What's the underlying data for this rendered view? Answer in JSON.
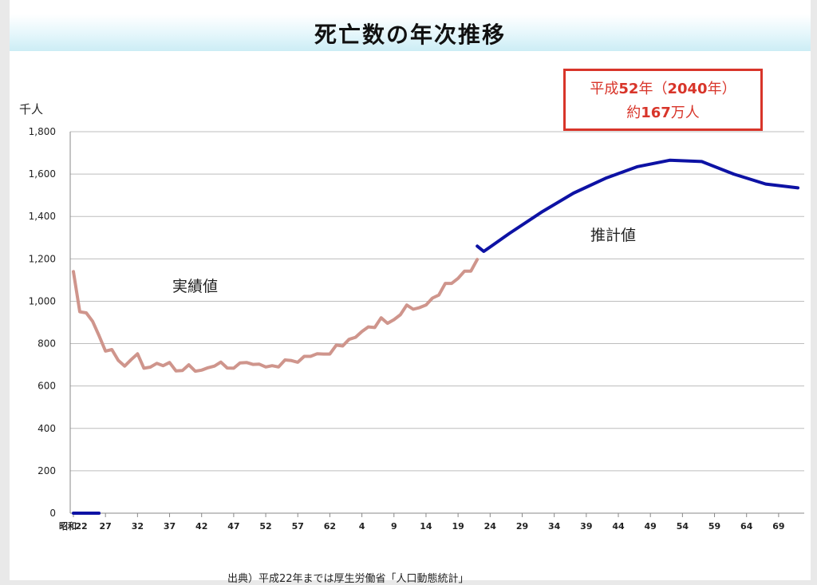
{
  "title": "死亡数の年次推移",
  "unit_label": "千人",
  "callout": {
    "line1_pre": "平成",
    "line1_year": "52",
    "line1_mid": "年（",
    "line1_ad": "2040",
    "line1_post": "年）",
    "line2_pre": "約",
    "line2_value": "167",
    "line2_post": "万人"
  },
  "source_text": "出典）平成22年までは厚生労働省「人口動態統計」",
  "colors": {
    "actual": "#cf958c",
    "projected": "#0d12a4",
    "callout": "#d8352a",
    "grid": "#bdbdbd",
    "title_band": "#ccedf5"
  },
  "chart_data": {
    "type": "line",
    "title": "死亡数の年次推移",
    "ylabel": "千人",
    "ylim": [
      0,
      1800
    ],
    "y_ticks": [
      "0",
      "200",
      "400",
      "600",
      "800",
      "1,000",
      "1,200",
      "1,400",
      "1,600",
      "1,800"
    ],
    "x_era_label": "昭和",
    "x_tick_labels": [
      "22",
      "27",
      "32",
      "37",
      "42",
      "47",
      "52",
      "57",
      "62",
      "4",
      "9",
      "14",
      "19",
      "24",
      "29",
      "34",
      "39",
      "44",
      "49",
      "54",
      "59",
      "64",
      "69"
    ],
    "x_range": [
      1947,
      2060
    ],
    "grid": true,
    "annotations": [
      "実績値",
      "推計値"
    ],
    "series": [
      {
        "name": "実績値",
        "x": [
          1947,
          1948,
          1949,
          1950,
          1951,
          1952,
          1953,
          1954,
          1955,
          1956,
          1957,
          1958,
          1959,
          1960,
          1961,
          1962,
          1963,
          1964,
          1965,
          1966,
          1967,
          1968,
          1969,
          1970,
          1971,
          1972,
          1973,
          1974,
          1975,
          1976,
          1977,
          1978,
          1979,
          1980,
          1981,
          1982,
          1983,
          1984,
          1985,
          1986,
          1987,
          1988,
          1989,
          1990,
          1991,
          1992,
          1993,
          1994,
          1995,
          1996,
          1997,
          1998,
          1999,
          2000,
          2001,
          2002,
          2003,
          2004,
          2005,
          2006,
          2007,
          2008,
          2009,
          2010
        ],
        "values": [
          1140,
          950,
          945,
          905,
          838,
          765,
          772,
          721,
          694,
          724,
          752,
          684,
          689,
          707,
          696,
          711,
          671,
          673,
          700,
          670,
          675,
          686,
          694,
          713,
          685,
          684,
          709,
          711,
          702,
          703,
          690,
          696,
          690,
          723,
          720,
          712,
          740,
          740,
          752,
          751,
          751,
          793,
          789,
          820,
          830,
          857,
          879,
          876,
          922,
          896,
          913,
          936,
          982,
          962,
          970,
          982,
          1015,
          1029,
          1084,
          1084,
          1108,
          1142,
          1142,
          1197
        ]
      },
      {
        "name": "推計値",
        "x": [
          1947,
          1948,
          1949,
          1950,
          1951
        ],
        "values": [
          0,
          0,
          0,
          0,
          0
        ]
      },
      {
        "name": "推計値",
        "x": [
          2010,
          2011,
          2012,
          2015,
          2020,
          2025,
          2030,
          2035,
          2040,
          2045,
          2050,
          2055,
          2060
        ],
        "values": [
          1260,
          1235,
          1256,
          1320,
          1420,
          1510,
          1580,
          1635,
          1665,
          1659,
          1600,
          1553,
          1535
        ]
      }
    ]
  }
}
